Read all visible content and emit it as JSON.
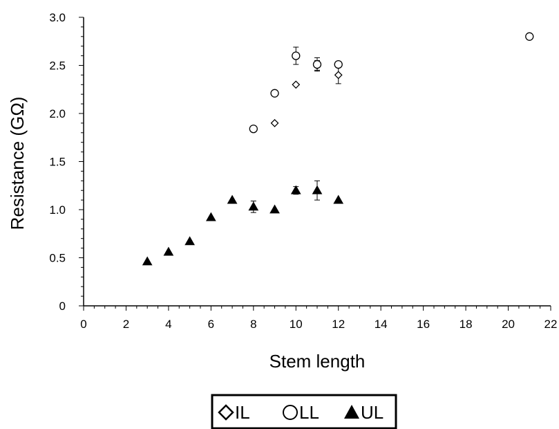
{
  "chart_data": {
    "type": "scatter",
    "title": "",
    "xlabel": "Stem length",
    "ylabel": "Resistance (GΩ)",
    "xlim": [
      0,
      22
    ],
    "ylim": [
      0,
      3.0
    ],
    "x_ticks": [
      "0",
      "2",
      "4",
      "6",
      "8",
      "10",
      "12",
      "14",
      "16",
      "18",
      "20",
      "22"
    ],
    "y_ticks": [
      "0",
      "0.5",
      "1.0",
      "1.5",
      "2.0",
      "2.5",
      "3.0"
    ],
    "grid": false,
    "legend_position": "bottom",
    "series": [
      {
        "name": "IL",
        "marker": "diamond-open",
        "points": [
          {
            "x": 9,
            "y": 1.9,
            "err": 0
          },
          {
            "x": 10,
            "y": 2.3,
            "err": 0
          },
          {
            "x": 11,
            "y": 2.5,
            "err": 0.05
          },
          {
            "x": 12,
            "y": 2.4,
            "err": 0.09
          }
        ]
      },
      {
        "name": "LL",
        "marker": "circle-open",
        "points": [
          {
            "x": 8,
            "y": 1.84,
            "err": 0
          },
          {
            "x": 9,
            "y": 2.21,
            "err": 0.03
          },
          {
            "x": 10,
            "y": 2.6,
            "err": 0.09
          },
          {
            "x": 11,
            "y": 2.51,
            "err": 0.07
          },
          {
            "x": 12,
            "y": 2.51,
            "err": 0.03
          },
          {
            "x": 21,
            "y": 2.8,
            "err": 0
          }
        ]
      },
      {
        "name": "UL",
        "marker": "triangle-filled",
        "points": [
          {
            "x": 3,
            "y": 0.46,
            "err": 0
          },
          {
            "x": 4,
            "y": 0.56,
            "err": 0
          },
          {
            "x": 5,
            "y": 0.67,
            "err": 0
          },
          {
            "x": 6,
            "y": 0.92,
            "err": 0
          },
          {
            "x": 7,
            "y": 1.1,
            "err": 0
          },
          {
            "x": 8,
            "y": 1.03,
            "err": 0.06
          },
          {
            "x": 9,
            "y": 1.0,
            "err": 0
          },
          {
            "x": 10,
            "y": 1.2,
            "err": 0.04
          },
          {
            "x": 11,
            "y": 1.2,
            "err": 0.1
          },
          {
            "x": 12,
            "y": 1.1,
            "err": 0
          }
        ]
      }
    ],
    "colors": {
      "marker": "#000000",
      "axis": "#000000",
      "background": "#ffffff"
    }
  }
}
